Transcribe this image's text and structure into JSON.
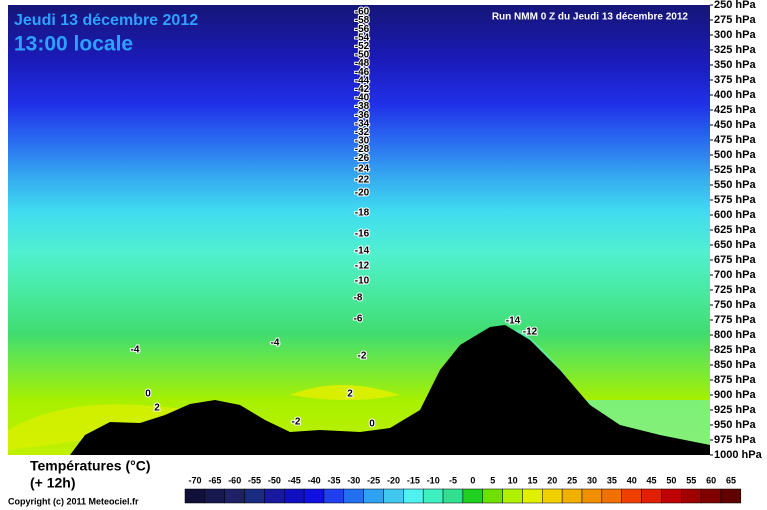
{
  "chart_data": {
    "type": "contour",
    "title": "Jeudi 13 décembre 2012",
    "subtitle": "13:00 locale",
    "run_label": "Run NMM 0 Z du Jeudi 13 décembre 2012",
    "colorbar_title": "Températures (°C)",
    "colorbar_subtitle": "(+ 12h)",
    "copyright": "Copyright (c) 2011 Meteociel.fr",
    "ylim": [
      1000,
      250
    ],
    "yticks": [
      {
        "value": 250,
        "label": "250 hPa"
      },
      {
        "value": 275,
        "label": "275 hPa"
      },
      {
        "value": 300,
        "label": "300 hPa"
      },
      {
        "value": 325,
        "label": "325 hPa"
      },
      {
        "value": 350,
        "label": "350 hPa"
      },
      {
        "value": 375,
        "label": "375 hPa"
      },
      {
        "value": 400,
        "label": "400 hPa"
      },
      {
        "value": 425,
        "label": "425 hPa"
      },
      {
        "value": 450,
        "label": "450 hPa"
      },
      {
        "value": 475,
        "label": "475 hPa"
      },
      {
        "value": 500,
        "label": "500 hPa"
      },
      {
        "value": 525,
        "label": "525 hPa"
      },
      {
        "value": 550,
        "label": "550 hPa"
      },
      {
        "value": 575,
        "label": "575 hPa"
      },
      {
        "value": 600,
        "label": "600 hPa"
      },
      {
        "value": 625,
        "label": "625 hPa"
      },
      {
        "value": 650,
        "label": "650 hPa"
      },
      {
        "value": 675,
        "label": "675 hPa"
      },
      {
        "value": 700,
        "label": "700 hPa"
      },
      {
        "value": 725,
        "label": "725 hPa"
      },
      {
        "value": 750,
        "label": "750 hPa"
      },
      {
        "value": 775,
        "label": "775 hPa"
      },
      {
        "value": 800,
        "label": "800 hPa"
      },
      {
        "value": 825,
        "label": "825 hPa"
      },
      {
        "value": 850,
        "label": "850 hPa"
      },
      {
        "value": 875,
        "label": "875 hPa"
      },
      {
        "value": 900,
        "label": "900 hPa"
      },
      {
        "value": 925,
        "label": "925 hPa"
      },
      {
        "value": 950,
        "label": "950 hPa"
      },
      {
        "value": 975,
        "label": "975 hPa"
      },
      {
        "value": 1000,
        "label": "1000 hPa"
      }
    ],
    "colorbar_ticks": [
      -70,
      -65,
      -60,
      -55,
      -50,
      -45,
      -40,
      -35,
      -30,
      -25,
      -20,
      -15,
      -10,
      -5,
      0,
      5,
      10,
      15,
      20,
      25,
      30,
      35,
      40,
      45,
      50,
      55,
      60,
      65
    ],
    "colorbar_colors": [
      "#101038",
      "#181850",
      "#202068",
      "#1a2a80",
      "#1818a0",
      "#1010c0",
      "#1010e0",
      "#2040f0",
      "#2070f0",
      "#30a0f0",
      "#40c8f0",
      "#50f0f0",
      "#40f0c0",
      "#30e090",
      "#20d020",
      "#70e000",
      "#b0f000",
      "#e0f000",
      "#f0d000",
      "#f0b000",
      "#f09000",
      "#f07000",
      "#f04000",
      "#e02000",
      "#c00000",
      "#a00000",
      "#800000",
      "#600000"
    ],
    "annotations": [
      "-60",
      "-58",
      "-56",
      "-54",
      "-52",
      "-50",
      "-48",
      "-46",
      "-44",
      "-42",
      "-40",
      "-38",
      "-36",
      "-34",
      "-32",
      "-30",
      "-28",
      "-26",
      "-24",
      "-22",
      "-20",
      "-18",
      "-16",
      "-14",
      "-12",
      "-10",
      "-8",
      "-6",
      "-4",
      "-4",
      "-2",
      "0",
      "2",
      "2",
      "0",
      "-2",
      "-14",
      "-12"
    ]
  }
}
